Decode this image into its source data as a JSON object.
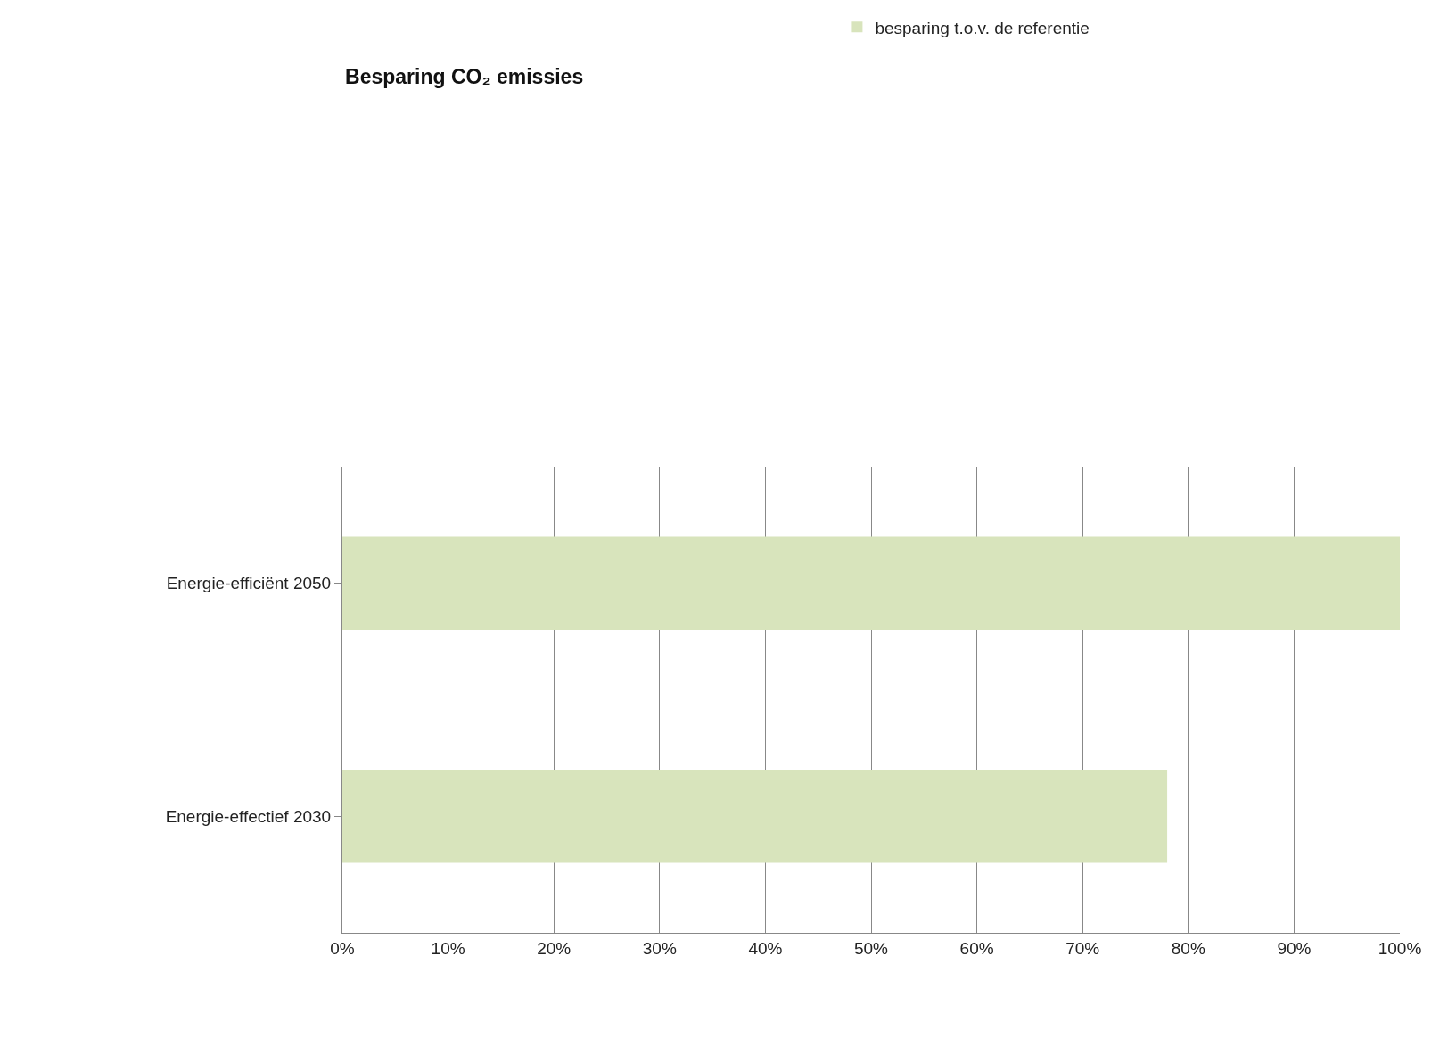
{
  "chart_data": {
    "type": "bar",
    "orientation": "horizontal",
    "title": "Besparing CO₂ emissies",
    "categories": [
      "Energie-efficiënt 2050",
      "Energie-effectief 2030"
    ],
    "series": [
      {
        "name": "besparing t.o.v. de referentie",
        "color": "#d8e4bc",
        "values": [
          100,
          78
        ]
      }
    ],
    "xlim": [
      0,
      100
    ],
    "xticks": [
      {
        "value": 0,
        "label": "0%"
      },
      {
        "value": 10,
        "label": "10%"
      },
      {
        "value": 20,
        "label": "20%"
      },
      {
        "value": 30,
        "label": "30%"
      },
      {
        "value": 40,
        "label": "40%"
      },
      {
        "value": 50,
        "label": "50%"
      },
      {
        "value": 60,
        "label": "60%"
      },
      {
        "value": 70,
        "label": "70%"
      },
      {
        "value": 80,
        "label": "80%"
      },
      {
        "value": 90,
        "label": "90%"
      },
      {
        "value": 100,
        "label": "100%"
      }
    ],
    "grid": "x",
    "legend": "top"
  }
}
